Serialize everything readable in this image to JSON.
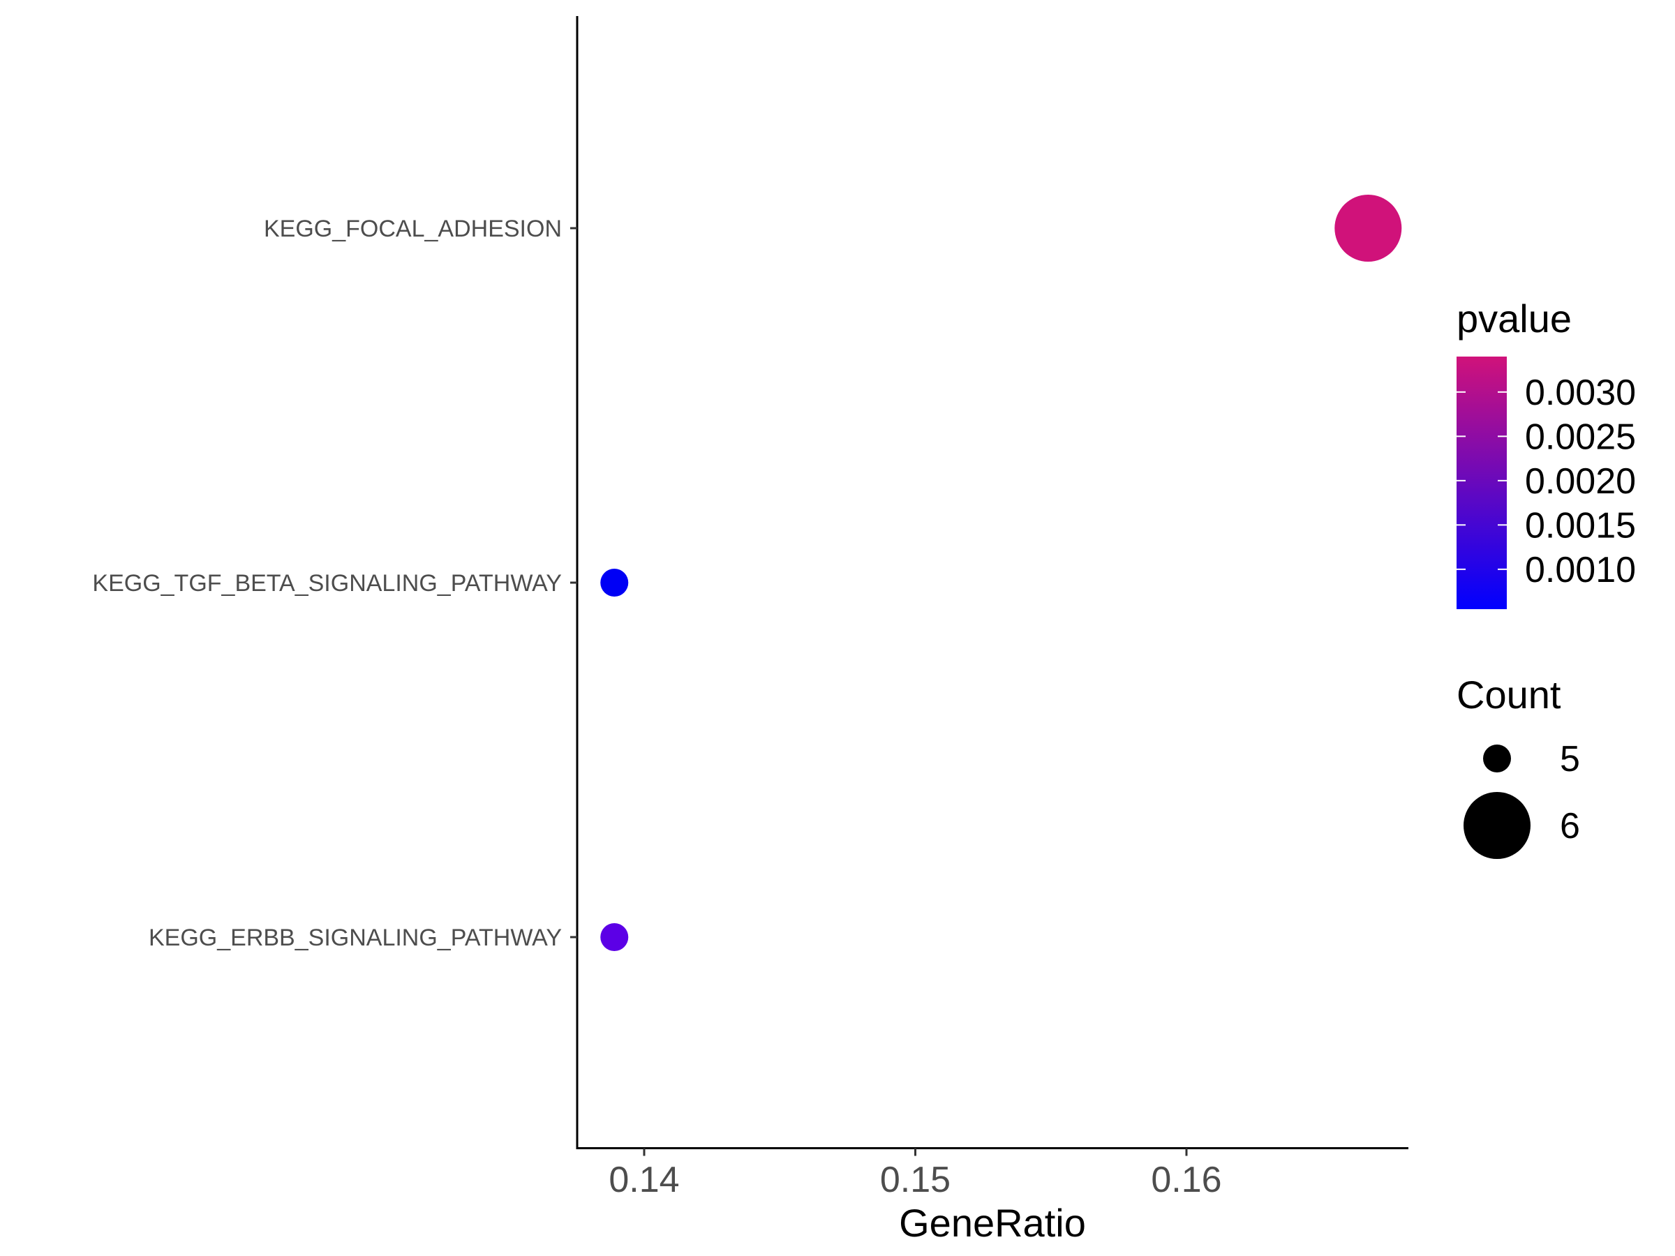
{
  "chart_data": {
    "type": "scatter",
    "title": "",
    "xlabel": "GeneRatio",
    "ylabel": "",
    "xlim": [
      0.1375,
      0.168
    ],
    "x_ticks": [
      0.14,
      0.15,
      0.16
    ],
    "x_tick_labels": [
      "0.14",
      "0.15",
      "0.16"
    ],
    "categories": [
      "KEGG_FOCAL_ADHESION",
      "KEGG_TGF_BETA_SIGNALING_PATHWAY",
      "KEGG_ERBB_SIGNALING_PATHWAY"
    ],
    "points": [
      {
        "category": "KEGG_FOCAL_ADHESION",
        "x": 0.1667,
        "count": 6,
        "pvalue": 0.0034,
        "color": "#d0127a"
      },
      {
        "category": "KEGG_TGF_BETA_SIGNALING_PATHWAY",
        "x": 0.1389,
        "count": 5,
        "pvalue": 0.0006,
        "color": "#0000f5"
      },
      {
        "category": "KEGG_ERBB_SIGNALING_PATHWAY",
        "x": 0.1389,
        "count": 5,
        "pvalue": 0.0011,
        "color": "#5c00e6"
      }
    ],
    "grid": false,
    "legend_position": "right",
    "color_legend": {
      "title": "pvalue",
      "low_color": "#0000ff",
      "high_color": "#d0127a",
      "range": [
        0.00055,
        0.0034
      ],
      "ticks": [
        0.003,
        0.0025,
        0.002,
        0.0015,
        0.001
      ],
      "tick_labels": [
        "0.0030",
        "0.0025",
        "0.0020",
        "0.0015",
        "0.0010"
      ]
    },
    "size_legend": {
      "title": "Count",
      "entries": [
        {
          "label": "5",
          "value": 5
        },
        {
          "label": "6",
          "value": 6
        }
      ]
    }
  }
}
